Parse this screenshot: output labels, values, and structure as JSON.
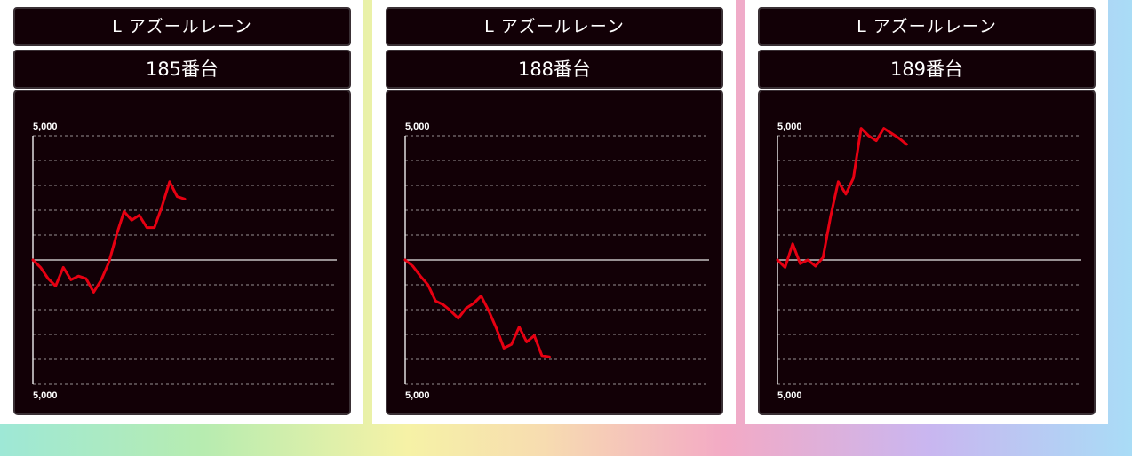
{
  "colors": {
    "panel": "#120006",
    "line": "#e60012",
    "grid": "#ffffff"
  },
  "chart_data": [
    {
      "type": "line",
      "machine_label": "L アズールレーン",
      "unit_label": "185番台",
      "y_top_label": "5,000",
      "y_bottom_label": "5,000",
      "ylim": [
        -5000,
        5000
      ],
      "grid": true,
      "x": [
        0,
        1,
        2,
        3,
        4,
        5,
        6,
        7,
        8,
        9,
        10,
        11,
        12,
        13,
        14,
        15,
        16,
        17,
        18,
        19,
        20,
        21,
        22,
        23,
        24,
        25,
        26,
        27,
        28,
        29,
        30,
        31,
        32,
        33,
        34,
        35,
        36,
        37,
        38,
        39,
        40
      ],
      "values": [
        0,
        -300,
        -750,
        -1050,
        -300,
        -800,
        -650,
        -750,
        -1300,
        -800,
        -100,
        1000,
        1950,
        1600,
        1800,
        1300,
        1300,
        2150,
        3150,
        2550,
        2450,
        null,
        null,
        null,
        null,
        null,
        null,
        null,
        null,
        null,
        null,
        null,
        null,
        null,
        null,
        null,
        null,
        null,
        null,
        null,
        null
      ]
    },
    {
      "type": "line",
      "machine_label": "L アズールレーン",
      "unit_label": "188番台",
      "y_top_label": "5,000",
      "y_bottom_label": "5,000",
      "ylim": [
        -5000,
        5000
      ],
      "grid": true,
      "x": [
        0,
        1,
        2,
        3,
        4,
        5,
        6,
        7,
        8,
        9,
        10,
        11,
        12,
        13,
        14,
        15,
        16,
        17,
        18,
        19,
        20,
        21,
        22,
        23,
        24,
        25,
        26,
        27,
        28,
        29,
        30,
        31,
        32,
        33,
        34,
        35,
        36,
        37,
        38,
        39,
        40
      ],
      "values": [
        0,
        -250,
        -650,
        -1000,
        -1650,
        -1800,
        -2050,
        -2350,
        -1950,
        -1750,
        -1450,
        -2050,
        -2750,
        -3550,
        -3400,
        -2700,
        -3300,
        -3050,
        -3850,
        -3900,
        null,
        null,
        null,
        null,
        null,
        null,
        null,
        null,
        null,
        null,
        null,
        null,
        null,
        null,
        null,
        null,
        null,
        null,
        null,
        null,
        null
      ]
    },
    {
      "type": "line",
      "machine_label": "L アズールレーン",
      "unit_label": "189番台",
      "y_top_label": "5,000",
      "y_bottom_label": "5,000",
      "ylim": [
        -5000,
        5000
      ],
      "grid": true,
      "x": [
        0,
        1,
        2,
        3,
        4,
        5,
        6,
        7,
        8,
        9,
        10,
        11,
        12,
        13,
        14,
        15,
        16,
        17,
        18,
        19,
        20,
        21,
        22,
        23,
        24,
        25,
        26,
        27,
        28,
        29,
        30,
        31,
        32,
        33,
        34,
        35,
        36,
        37,
        38,
        39,
        40
      ],
      "values": [
        0,
        -300,
        650,
        -150,
        0,
        -250,
        100,
        1750,
        3150,
        2650,
        3300,
        5300,
        5000,
        4800,
        5300,
        5100,
        4900,
        4650,
        null,
        null,
        null,
        null,
        null,
        null,
        null,
        null,
        null,
        null,
        null,
        null,
        null,
        null,
        null,
        null,
        null,
        null,
        null,
        null,
        null,
        null,
        null
      ]
    }
  ]
}
